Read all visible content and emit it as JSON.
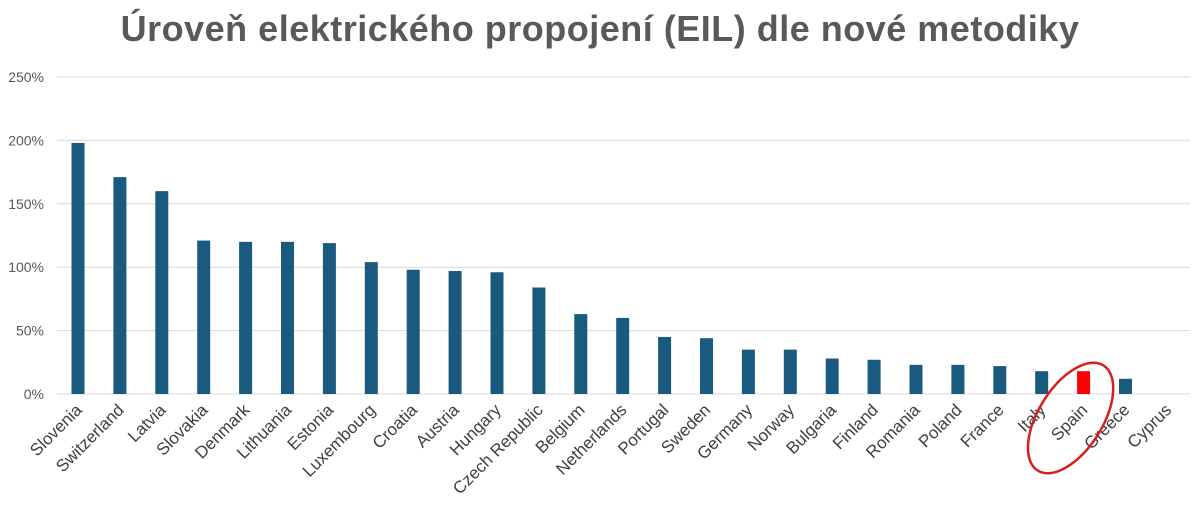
{
  "chart_data": {
    "type": "bar",
    "title": "Úroveň elektrického propojení (EIL) dle nové metodiky",
    "xlabel": "",
    "ylabel": "",
    "ylim": [
      0,
      250
    ],
    "y_ticks": [
      "0%",
      "50%",
      "100%",
      "150%",
      "200%",
      "250%"
    ],
    "y_tick_values": [
      0,
      50,
      100,
      150,
      200,
      250
    ],
    "grid": true,
    "legend": "none",
    "categories": [
      "Slovenia",
      "Switzerland",
      "Latvia",
      "Slovakia",
      "Denmark",
      "Lithuania",
      "Estonia",
      "Luxembourg",
      "Croatia",
      "Austria",
      "Hungary",
      "Czech Republic",
      "Belgium",
      "Netherlands",
      "Portugal",
      "Sweden",
      "Germany",
      "Norway",
      "Bulgaria",
      "Finland",
      "Romania",
      "Poland",
      "France",
      "Italy",
      "Spain",
      "Greece",
      "Cyprus"
    ],
    "values": [
      198,
      171,
      160,
      121,
      120,
      120,
      119,
      104,
      98,
      97,
      96,
      84,
      63,
      60,
      45,
      44,
      35,
      35,
      28,
      27,
      23,
      23,
      22,
      18,
      18,
      12,
      0
    ],
    "highlight": {
      "category": "Spain",
      "color": "#ff0000",
      "circled": true
    },
    "colors": {
      "bar": "#1a5a7f",
      "highlight": "#ff0000",
      "circle": "#d42020",
      "grid": "#d9d9d9",
      "title": "#595959"
    }
  }
}
